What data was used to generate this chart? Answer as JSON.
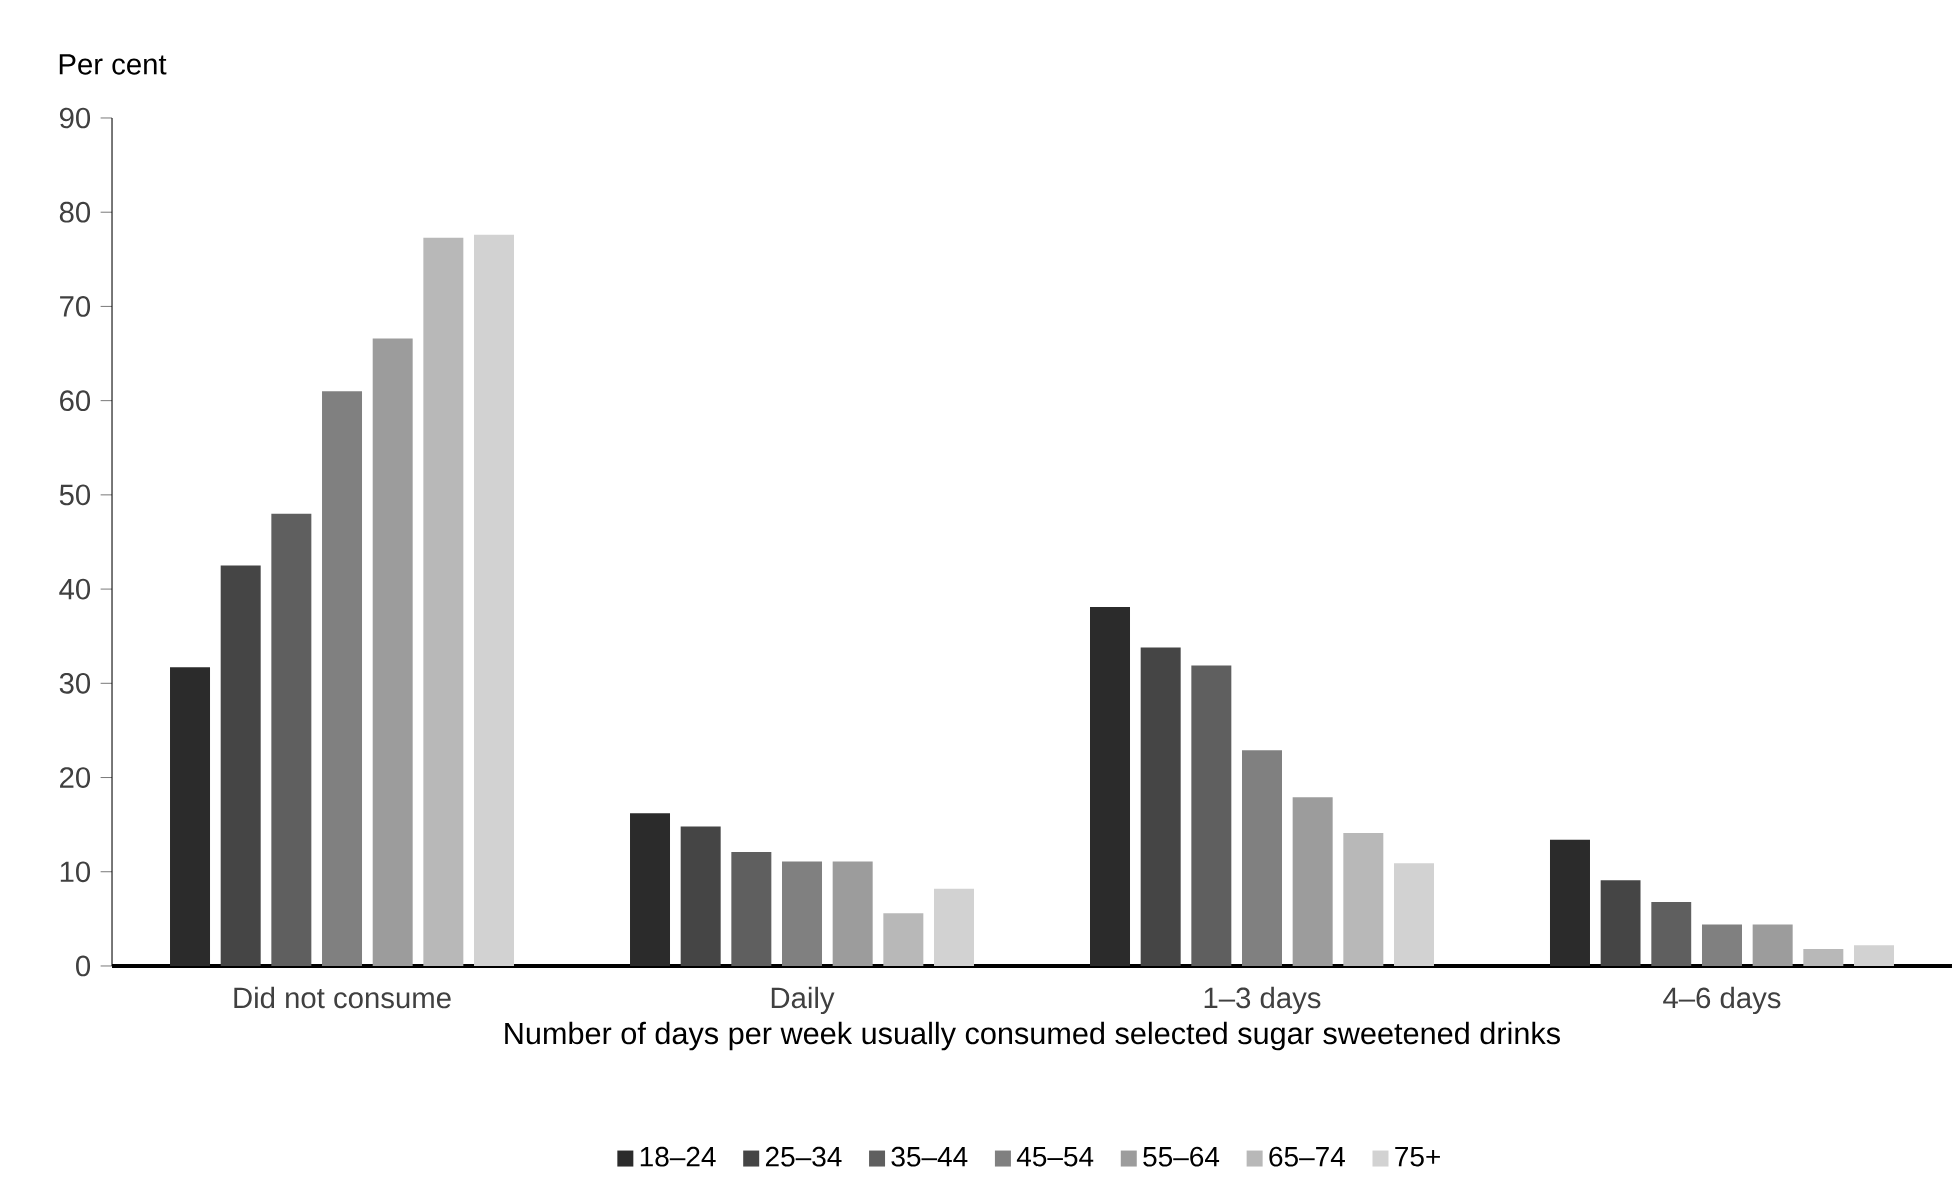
{
  "chart_data": {
    "type": "bar",
    "ylabel": "Per cent",
    "xlabel": "Number of days per week usually consumed selected sugar sweetened drinks",
    "categories": [
      "Did not consume",
      "Daily",
      "1–3 days",
      "4–6 days"
    ],
    "series": [
      {
        "name": "18–24",
        "color": "#2b2b2b",
        "values": [
          31.7,
          16.2,
          38.1,
          13.4
        ]
      },
      {
        "name": "25–34",
        "color": "#454545",
        "values": [
          42.5,
          14.8,
          33.8,
          9.1
        ]
      },
      {
        "name": "35–44",
        "color": "#5f5f5f",
        "values": [
          48.0,
          12.1,
          31.9,
          6.8
        ]
      },
      {
        "name": "45–54",
        "color": "#808080",
        "values": [
          61.0,
          11.1,
          22.9,
          4.4
        ]
      },
      {
        "name": "55–64",
        "color": "#9c9c9c",
        "values": [
          66.6,
          11.1,
          17.9,
          4.4
        ]
      },
      {
        "name": "65–74",
        "color": "#b8b8b8",
        "values": [
          77.3,
          5.6,
          14.1,
          1.8
        ]
      },
      {
        "name": "75+",
        "color": "#d2d2d2",
        "values": [
          77.6,
          8.2,
          10.9,
          2.2
        ]
      }
    ],
    "ylim": [
      0,
      90
    ],
    "yticks": [
      0,
      10,
      20,
      30,
      40,
      50,
      60,
      70,
      80,
      90
    ],
    "grid": false,
    "legend": "bottom"
  }
}
